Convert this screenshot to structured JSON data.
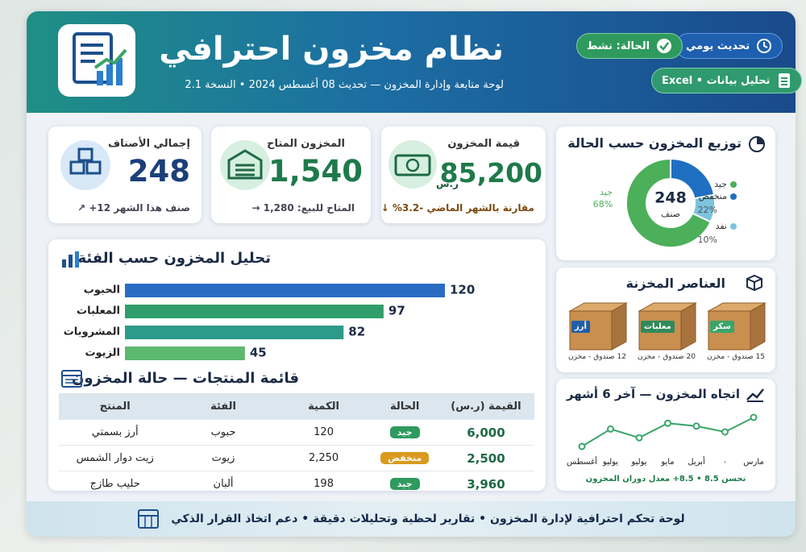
{
  "header": {
    "title": "نظام مخزون احترافي",
    "subtitle": "لوحة متابعة وإدارة المخزون — تحديث 08 أغسطس 2024 • النسخة 2.1",
    "badges": [
      "تحديث يومي",
      "الحالة: نشط",
      "تحليل بيانات • Excel"
    ]
  },
  "kpis": [
    {
      "label": "إجمالي الأصناف",
      "value": 248,
      "note": "صنف هذا الشهر 12+ ↗"
    },
    {
      "label": "المخزون المتاح",
      "value": "1,540",
      "note": "المتاح للبيع: 1,280 →"
    },
    {
      "label": "قيمة المخزون",
      "value": "85,200",
      "unit": "ر.س",
      "note": "مقارنة بالشهر الماضي -3.2% ↓"
    }
  ],
  "stored_items": {
    "title": "العناصر المخزنة",
    "items": [
      {
        "label": "سكر",
        "caption": "15 صندوق - مخزن"
      },
      {
        "label": "معلبات",
        "caption": "20 صندوق - مخزن"
      },
      {
        "label": "أرز",
        "caption": "12 صندوق - مخزن"
      }
    ]
  },
  "table": {
    "title": "قائمة المنتجات — حالة المخزون",
    "columns": [
      "المنتج",
      "الفئة",
      "الكمية",
      "الحالة",
      "القيمة (ر.س)"
    ],
    "rows": [
      [
        "أرز بسمتي",
        "حبوب",
        "120",
        "جيد",
        "6,000"
      ],
      [
        "زيت دوار الشمس",
        "زيوت",
        "2,250",
        "منخفض",
        "2,500"
      ],
      [
        "حليب طازج",
        "ألبان",
        "198",
        "جيد",
        "3,960"
      ]
    ]
  },
  "footer": "لوحة تحكم احترافية لإدارة المخزون • تقارير لحظية وتحليلات دقيقة • دعم اتخاذ القرار الذكي",
  "chart_data": [
    {
      "type": "bar",
      "title": "تحليل المخزون حسب الفئة",
      "categories": [
        "الحبوب",
        "المعلبات",
        "المشروبات",
        "الزيوت"
      ],
      "values": [
        120,
        97,
        82,
        45
      ],
      "colors": [
        "#2a6cc4",
        "#2f9e6a",
        "#2e9a8a",
        "#5cb86e"
      ]
    },
    {
      "type": "pie",
      "title": "توزيع المخزون حسب الحالة",
      "center_value": 248,
      "center_unit": "صنف",
      "categories": [
        "جيد",
        "منخفض",
        "نفد"
      ],
      "values": [
        68,
        22,
        10
      ],
      "value_labels": [
        "68%",
        "22%",
        "10%"
      ],
      "colors": [
        "#4caf5a",
        "#1f6fc2",
        "#7cc3de"
      ]
    },
    {
      "type": "line",
      "title": "اتجاه المخزون — آخر 6 أشهر",
      "categories": [
        "مارس",
        "٠",
        "أبريل",
        "مايو",
        "يوليو",
        "يوليو",
        "أغسطس"
      ],
      "values": [
        9.5,
        7,
        8,
        8.5,
        6,
        7.5,
        4.5
      ],
      "color": "#3aa56a",
      "note": "تحسن 8.5 • 8.5+ معدل دوران المخزون"
    }
  ]
}
